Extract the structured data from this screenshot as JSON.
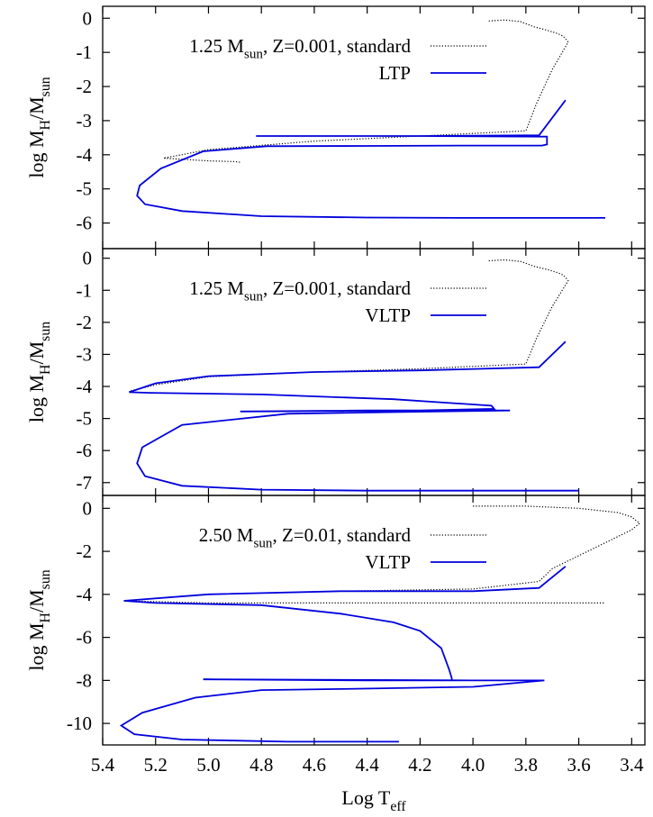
{
  "chart_data": [
    {
      "type": "line",
      "ylabel": "log M_H/M_sun",
      "ylim": [
        -6.75,
        0.35
      ],
      "yticks": [
        0,
        -1,
        -2,
        -3,
        -4,
        -5,
        -6
      ],
      "legend_position": "top",
      "legend": [
        {
          "text": "1.25 M_sun, Z=0.001, standard",
          "style": "dotted",
          "color": "#000000"
        },
        {
          "text": "LTP",
          "style": "solid",
          "color": "#0000dd"
        }
      ],
      "series": [
        {
          "name": "1.25 M_sun, Z=0.001, standard",
          "style": "dotted",
          "x": [
            3.94,
            3.88,
            3.82,
            3.77,
            3.72,
            3.7,
            3.68,
            3.66,
            3.65,
            3.64,
            3.7,
            3.76,
            3.8,
            4.2,
            4.6,
            5.0,
            5.17,
            5.0,
            4.9,
            4.88
          ],
          "y": [
            -0.08,
            -0.05,
            -0.1,
            -0.25,
            -0.35,
            -0.4,
            -0.45,
            -0.52,
            -0.6,
            -0.7,
            -1.5,
            -2.5,
            -3.3,
            -3.45,
            -3.6,
            -3.85,
            -4.1,
            -4.18,
            -4.2,
            -4.22
          ]
        },
        {
          "name": "LTP",
          "style": "solid",
          "x": [
            3.65,
            3.75,
            4.2,
            4.82,
            4.2,
            3.72,
            3.72,
            3.74,
            4.0,
            4.4,
            4.78,
            5.02,
            5.18,
            5.26,
            5.27,
            5.24,
            5.1,
            4.8,
            4.4,
            4.0,
            3.5
          ],
          "y": [
            -2.4,
            -3.43,
            -3.45,
            -3.45,
            -3.45,
            -3.47,
            -3.7,
            -3.73,
            -3.73,
            -3.74,
            -3.75,
            -3.9,
            -4.4,
            -4.9,
            -5.2,
            -5.45,
            -5.65,
            -5.8,
            -5.84,
            -5.85,
            -5.85
          ]
        }
      ]
    },
    {
      "type": "line",
      "ylabel": "log M_H/M_sun",
      "ylim": [
        -7.4,
        0.3
      ],
      "yticks": [
        0,
        -1,
        -2,
        -3,
        -4,
        -5,
        -6,
        -7
      ],
      "legend_position": "top",
      "legend": [
        {
          "text": "1.25 M_sun, Z=0.001, standard",
          "style": "dotted",
          "color": "#000000"
        },
        {
          "text": "VLTP",
          "style": "solid",
          "color": "#0000dd"
        }
      ],
      "series": [
        {
          "name": "1.25 M_sun, Z=0.001, standard",
          "style": "dotted",
          "x": [
            3.94,
            3.88,
            3.82,
            3.77,
            3.72,
            3.7,
            3.68,
            3.66,
            3.65,
            3.64,
            3.7,
            3.76,
            3.8,
            4.2,
            4.6,
            5.0,
            5.2,
            5.3,
            5.26
          ],
          "y": [
            -0.08,
            -0.05,
            -0.1,
            -0.25,
            -0.35,
            -0.4,
            -0.45,
            -0.52,
            -0.6,
            -0.7,
            -1.5,
            -2.5,
            -3.3,
            -3.45,
            -3.55,
            -3.7,
            -3.95,
            -4.15,
            -4.2
          ]
        },
        {
          "name": "VLTP",
          "style": "solid",
          "x": [
            3.65,
            3.75,
            4.2,
            4.6,
            5.0,
            5.2,
            5.3,
            5.22,
            4.8,
            4.3,
            3.93,
            3.92,
            4.2,
            4.88,
            4.4,
            3.86,
            4.3,
            4.7,
            5.1,
            5.25,
            5.27,
            5.24,
            5.1,
            4.8,
            4.4,
            3.6
          ],
          "y": [
            -2.6,
            -3.4,
            -3.5,
            -3.55,
            -3.68,
            -3.9,
            -4.18,
            -4.2,
            -4.25,
            -4.4,
            -4.6,
            -4.7,
            -4.75,
            -4.78,
            -4.75,
            -4.75,
            -4.8,
            -4.85,
            -5.2,
            -5.9,
            -6.4,
            -6.8,
            -7.1,
            -7.22,
            -7.25,
            -7.25
          ]
        }
      ]
    },
    {
      "type": "line",
      "ylabel": "log M_H/M_sun",
      "xlabel": "Log T_eff",
      "ylim": [
        -11,
        0.6
      ],
      "xlim": [
        5.4,
        3.35
      ],
      "yticks": [
        0,
        -2,
        -4,
        -6,
        -8,
        -10
      ],
      "xticks": [
        5.4,
        5.2,
        5.0,
        4.8,
        4.6,
        4.4,
        4.2,
        4.0,
        3.8,
        3.6,
        3.4
      ],
      "legend_position": "top",
      "legend": [
        {
          "text": "2.50 M_sun, Z=0.01, standard",
          "style": "dotted",
          "color": "#000000"
        },
        {
          "text": "VLTP",
          "style": "solid",
          "color": "#0000dd"
        }
      ],
      "series": [
        {
          "name": "2.50 M_sun, Z=0.01, standard",
          "style": "dotted",
          "x": [
            4.0,
            3.8,
            3.6,
            3.45,
            3.4,
            3.37,
            3.4,
            3.5,
            3.6,
            3.7,
            3.75,
            4.0,
            4.5,
            5.0,
            5.32,
            5.0,
            4.5,
            4.0,
            3.5
          ],
          "y": [
            0.1,
            0.1,
            0.0,
            -0.2,
            -0.4,
            -0.7,
            -1.0,
            -1.6,
            -2.2,
            -2.8,
            -3.4,
            -3.75,
            -3.85,
            -4.0,
            -4.3,
            -4.4,
            -4.4,
            -4.4,
            -4.4
          ]
        },
        {
          "name": "VLTP",
          "style": "solid",
          "x": [
            3.65,
            3.75,
            4.0,
            4.5,
            5.0,
            5.32,
            5.2,
            4.8,
            4.5,
            4.3,
            4.2,
            4.12,
            4.09,
            4.08,
            4.08,
            4.4,
            5.02,
            4.6,
            4.0,
            3.73,
            4.0,
            4.5,
            4.8,
            5.05,
            5.25,
            5.33,
            5.28,
            5.1,
            4.7,
            4.28
          ],
          "y": [
            -2.7,
            -3.7,
            -3.85,
            -3.85,
            -4.0,
            -4.3,
            -4.4,
            -4.5,
            -4.9,
            -5.3,
            -5.7,
            -6.5,
            -7.5,
            -7.9,
            -8.0,
            -8.0,
            -7.95,
            -7.97,
            -8.0,
            -8.0,
            -8.3,
            -8.4,
            -8.45,
            -8.8,
            -9.5,
            -10.1,
            -10.5,
            -10.75,
            -10.85,
            -10.85
          ]
        }
      ]
    }
  ]
}
